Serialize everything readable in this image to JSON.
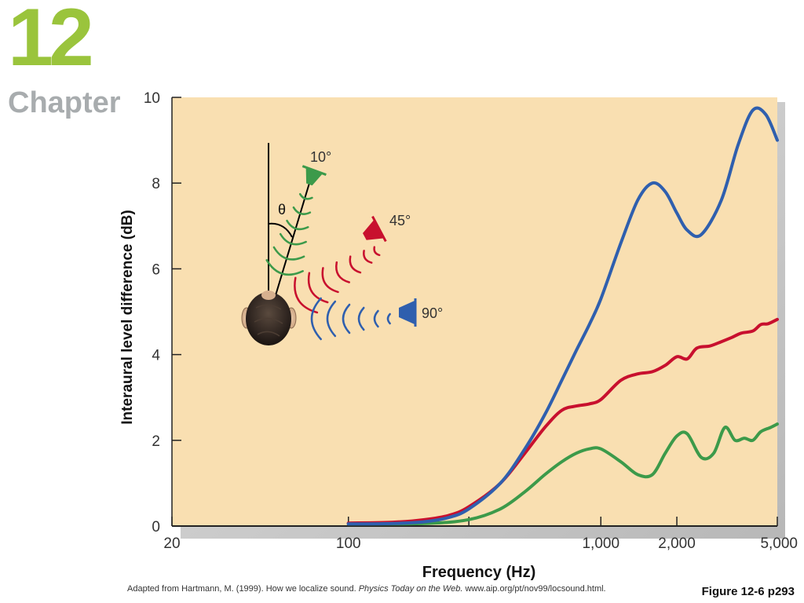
{
  "header": {
    "chapter_number": "12",
    "chapter_word": "Chapter"
  },
  "caption": {
    "prefix": "Adapted from Hartmann, M. (1999). How we localize sound.",
    "journal": "Physics Today on the Web.",
    "suffix": "www.aip.org/pt/nov99/locsound.html."
  },
  "figure_ref": "Figure 12-6 p293",
  "inset": {
    "theta": "θ",
    "angle_10": "10°",
    "angle_45": "45°",
    "angle_90": "90°"
  },
  "colors": {
    "background": "#f9dfb1",
    "blue": "#2f5fae",
    "red": "#c8102e",
    "green": "#3c9a4a",
    "brand_green": "#9ac43c"
  },
  "chart_data": {
    "type": "line",
    "xlabel": "Frequency (Hz)",
    "ylabel": "Interaural level difference (dB)",
    "xscale": "log",
    "xlim": [
      20,
      5000
    ],
    "ylim": [
      0,
      10
    ],
    "x_ticks": [
      20,
      100,
      1000,
      2000,
      5000
    ],
    "x_tick_labels": [
      "20",
      "100",
      "1,000",
      "2,000",
      "5,000"
    ],
    "y_ticks": [
      0,
      2,
      4,
      6,
      8,
      10
    ],
    "y_tick_labels": [
      "0",
      "2",
      "4",
      "6",
      "8",
      "10"
    ],
    "grid": false,
    "series": [
      {
        "name": "90°",
        "color": "#2f5fae",
        "x": [
          100,
          150,
          200,
          250,
          300,
          400,
          500,
          600,
          700,
          800,
          900,
          1000,
          1200,
          1400,
          1600,
          1800,
          2000,
          2200,
          2500,
          3000,
          3500,
          4000,
          4500,
          5000
        ],
        "y": [
          0.05,
          0.06,
          0.1,
          0.2,
          0.4,
          1.0,
          1.8,
          2.6,
          3.4,
          4.1,
          4.7,
          5.3,
          6.6,
          7.6,
          8.0,
          7.8,
          7.3,
          6.9,
          6.8,
          7.6,
          8.9,
          9.7,
          9.6,
          9.0
        ]
      },
      {
        "name": "45°",
        "color": "#c8102e",
        "x": [
          100,
          150,
          200,
          250,
          300,
          400,
          500,
          600,
          700,
          800,
          900,
          1000,
          1200,
          1400,
          1600,
          1800,
          2000,
          2200,
          2400,
          2700,
          3000,
          3300,
          3600,
          4000,
          4300,
          4600,
          5000
        ],
        "y": [
          0.07,
          0.09,
          0.15,
          0.25,
          0.45,
          1.0,
          1.7,
          2.3,
          2.7,
          2.8,
          2.85,
          2.95,
          3.4,
          3.55,
          3.6,
          3.75,
          3.95,
          3.9,
          4.15,
          4.2,
          4.3,
          4.4,
          4.5,
          4.55,
          4.7,
          4.72,
          4.82
        ]
      },
      {
        "name": "10°",
        "color": "#3c9a4a",
        "x": [
          100,
          200,
          300,
          400,
          500,
          600,
          700,
          800,
          900,
          1000,
          1200,
          1400,
          1600,
          1800,
          2000,
          2200,
          2500,
          2800,
          3100,
          3400,
          3700,
          4000,
          4300,
          4700,
          5000
        ],
        "y": [
          0.05,
          0.06,
          0.15,
          0.4,
          0.8,
          1.2,
          1.5,
          1.7,
          1.8,
          1.8,
          1.5,
          1.2,
          1.2,
          1.7,
          2.1,
          2.15,
          1.6,
          1.7,
          2.3,
          2.0,
          2.05,
          2.0,
          2.2,
          2.3,
          2.38
        ]
      }
    ]
  }
}
